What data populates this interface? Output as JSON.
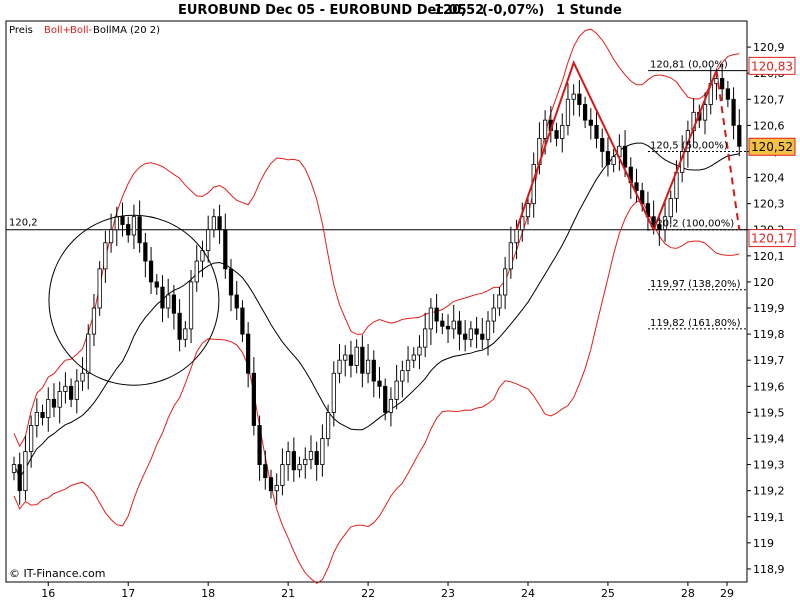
{
  "header": {
    "title": "EUROBUND Dec 05 - EUROBUND Dec 05",
    "price": "120,52",
    "change": "(-0,07%)",
    "interval": "1 Stunde"
  },
  "legend": {
    "price_label": "Preis",
    "boll_upper_label": "Boll+",
    "boll_lower_label": "Boll-",
    "bollma_label": "BollMA",
    "bollma_params": "(20 2)"
  },
  "copyright": "© IT-Finance.com",
  "colors": {
    "bollinger": "#e0201c",
    "pattern": "#d21a1a",
    "candle_up": "#ffffff",
    "candle_down": "#000000",
    "marker_border": "#e0201c",
    "marker_fill": "#f5c142"
  },
  "chart_data": {
    "type": "candlestick",
    "ylim": [
      118.85,
      121.0
    ],
    "x_ticks": [
      "16",
      "17",
      "18",
      "21",
      "22",
      "23",
      "24",
      "25",
      "28",
      "29"
    ],
    "y_ticks": [
      "120,9",
      "120,8",
      "120,7",
      "120,6",
      "120,5",
      "120,4",
      "120,3",
      "120,2",
      "120,1",
      "120",
      "119,9",
      "119,8",
      "119,7",
      "119,6",
      "119,5",
      "119,4",
      "119,3",
      "119,2",
      "119,1",
      "119",
      "118,9"
    ],
    "price_markers": [
      {
        "label": "120,83",
        "value": 120.83,
        "filled": false
      },
      {
        "label": "120,52",
        "value": 120.52,
        "filled": true
      },
      {
        "label": "120,17",
        "value": 120.17,
        "filled": false
      }
    ],
    "horizontal_line": {
      "label": "120,2",
      "value": 120.2
    },
    "fib_levels": [
      {
        "label": "120,81 (0,00%)",
        "value": 120.81,
        "dashed": false
      },
      {
        "label": "120,5 (50,00%)",
        "value": 120.5,
        "dashed": true
      },
      {
        "label": "120,2 (100,00%)",
        "value": 120.2,
        "dashed": true
      },
      {
        "label": "119,97 (138,20%)",
        "value": 119.97,
        "dashed": true
      },
      {
        "label": "119,82 (161,80%)",
        "value": 119.82,
        "dashed": true
      }
    ],
    "closes": [
      119.3,
      119.2,
      119.35,
      119.45,
      119.5,
      119.48,
      119.55,
      119.52,
      119.58,
      119.6,
      119.55,
      119.62,
      119.65,
      119.8,
      119.9,
      120.05,
      120.15,
      120.2,
      120.25,
      120.22,
      120.18,
      120.25,
      120.15,
      120.08,
      120.0,
      119.98,
      119.9,
      119.95,
      119.88,
      119.78,
      119.82,
      120.0,
      120.08,
      120.12,
      120.2,
      120.25,
      120.2,
      120.05,
      119.95,
      119.9,
      119.8,
      119.65,
      119.45,
      119.3,
      119.25,
      119.2,
      119.22,
      119.3,
      119.35,
      119.28,
      119.3,
      119.32,
      119.35,
      119.3,
      119.4,
      119.5,
      119.65,
      119.7,
      119.72,
      119.68,
      119.75,
      119.65,
      119.7,
      119.62,
      119.6,
      119.5,
      119.55,
      119.62,
      119.66,
      119.7,
      119.72,
      119.75,
      119.82,
      119.9,
      119.85,
      119.83,
      119.82,
      119.85,
      119.8,
      119.78,
      119.82,
      119.8,
      119.78,
      119.85,
      119.9,
      119.95,
      120.05,
      120.15,
      120.2,
      120.25,
      120.3,
      120.45,
      120.55,
      120.62,
      120.58,
      120.55,
      120.6,
      120.7,
      120.72,
      120.68,
      120.62,
      120.6,
      120.55,
      120.5,
      120.45,
      120.48,
      120.52,
      120.44,
      120.38,
      120.35,
      120.3,
      120.25,
      120.22,
      120.2,
      120.25,
      120.32,
      120.42,
      120.5,
      120.58,
      120.65,
      120.62,
      120.68,
      120.76,
      120.78,
      120.74,
      120.7,
      120.6,
      120.52
    ]
  }
}
